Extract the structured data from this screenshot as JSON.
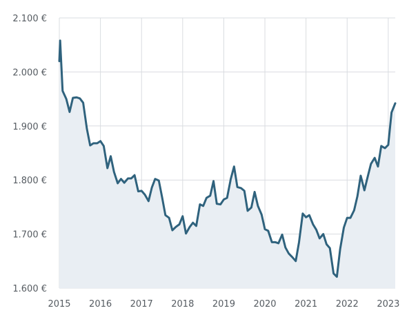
{
  "chart_data": {
    "type": "area",
    "title": "",
    "xlabel": "",
    "ylabel": "",
    "colors": {
      "line": "#2f627d",
      "fill": "#e9eef3",
      "grid": "#d9dce0",
      "text": "#555b61"
    },
    "grid": true,
    "ylim": [
      1600,
      2100
    ],
    "xlim": [
      2015.0,
      2023.17
    ],
    "y_ticks": [
      {
        "value": 2100,
        "label": "2.100 €"
      },
      {
        "value": 2000,
        "label": "2.000 €"
      },
      {
        "value": 1900,
        "label": "1.900 €"
      },
      {
        "value": 1800,
        "label": "1.800 €"
      },
      {
        "value": 1700,
        "label": "1.700 €"
      },
      {
        "value": 1600,
        "label": "1.600 €"
      }
    ],
    "x_ticks": [
      {
        "value": 2015,
        "label": "2015"
      },
      {
        "value": 2016,
        "label": "2016"
      },
      {
        "value": 2017,
        "label": "2017"
      },
      {
        "value": 2018,
        "label": "2018"
      },
      {
        "value": 2019,
        "label": "2019"
      },
      {
        "value": 2020,
        "label": "2020"
      },
      {
        "value": 2021,
        "label": "2021"
      },
      {
        "value": 2022,
        "label": "2022"
      },
      {
        "value": 2023,
        "label": "2023"
      }
    ],
    "series": [
      {
        "values": [
          [
            2015.0,
            2020
          ],
          [
            2015.02,
            2058
          ],
          [
            2015.08,
            1965
          ],
          [
            2015.17,
            1950
          ],
          [
            2015.25,
            1926
          ],
          [
            2015.33,
            1952
          ],
          [
            2015.42,
            1953
          ],
          [
            2015.5,
            1951
          ],
          [
            2015.58,
            1943
          ],
          [
            2015.67,
            1895
          ],
          [
            2015.75,
            1864
          ],
          [
            2015.83,
            1868
          ],
          [
            2015.92,
            1868
          ],
          [
            2016.0,
            1872
          ],
          [
            2016.08,
            1863
          ],
          [
            2016.17,
            1822
          ],
          [
            2016.25,
            1844
          ],
          [
            2016.33,
            1815
          ],
          [
            2016.42,
            1794
          ],
          [
            2016.5,
            1802
          ],
          [
            2016.58,
            1795
          ],
          [
            2016.67,
            1803
          ],
          [
            2016.75,
            1803
          ],
          [
            2016.83,
            1809
          ],
          [
            2016.92,
            1779
          ],
          [
            2017.0,
            1780
          ],
          [
            2017.08,
            1773
          ],
          [
            2017.17,
            1761
          ],
          [
            2017.25,
            1786
          ],
          [
            2017.33,
            1802
          ],
          [
            2017.42,
            1799
          ],
          [
            2017.5,
            1768
          ],
          [
            2017.58,
            1735
          ],
          [
            2017.67,
            1730
          ],
          [
            2017.75,
            1707
          ],
          [
            2017.83,
            1713
          ],
          [
            2017.92,
            1718
          ],
          [
            2018.0,
            1733
          ],
          [
            2018.08,
            1701
          ],
          [
            2018.17,
            1713
          ],
          [
            2018.25,
            1721
          ],
          [
            2018.33,
            1715
          ],
          [
            2018.42,
            1755
          ],
          [
            2018.5,
            1752
          ],
          [
            2018.58,
            1767
          ],
          [
            2018.67,
            1771
          ],
          [
            2018.75,
            1798
          ],
          [
            2018.83,
            1756
          ],
          [
            2018.92,
            1755
          ],
          [
            2019.0,
            1764
          ],
          [
            2019.08,
            1767
          ],
          [
            2019.17,
            1802
          ],
          [
            2019.25,
            1825
          ],
          [
            2019.33,
            1787
          ],
          [
            2019.42,
            1785
          ],
          [
            2019.5,
            1780
          ],
          [
            2019.58,
            1743
          ],
          [
            2019.67,
            1749
          ],
          [
            2019.75,
            1778
          ],
          [
            2019.83,
            1752
          ],
          [
            2019.92,
            1736
          ],
          [
            2020.0,
            1709
          ],
          [
            2020.08,
            1706
          ],
          [
            2020.17,
            1685
          ],
          [
            2020.25,
            1685
          ],
          [
            2020.33,
            1683
          ],
          [
            2020.42,
            1699
          ],
          [
            2020.5,
            1675
          ],
          [
            2020.58,
            1664
          ],
          [
            2020.67,
            1657
          ],
          [
            2020.75,
            1650
          ],
          [
            2020.83,
            1685
          ],
          [
            2020.92,
            1738
          ],
          [
            2021.0,
            1731
          ],
          [
            2021.08,
            1735
          ],
          [
            2021.17,
            1718
          ],
          [
            2021.25,
            1708
          ],
          [
            2021.33,
            1692
          ],
          [
            2021.42,
            1700
          ],
          [
            2021.5,
            1681
          ],
          [
            2021.58,
            1674
          ],
          [
            2021.67,
            1627
          ],
          [
            2021.75,
            1621
          ],
          [
            2021.83,
            1672
          ],
          [
            2021.92,
            1712
          ],
          [
            2022.0,
            1730
          ],
          [
            2022.08,
            1730
          ],
          [
            2022.17,
            1744
          ],
          [
            2022.25,
            1770
          ],
          [
            2022.33,
            1808
          ],
          [
            2022.42,
            1781
          ],
          [
            2022.5,
            1806
          ],
          [
            2022.58,
            1830
          ],
          [
            2022.67,
            1841
          ],
          [
            2022.75,
            1825
          ],
          [
            2022.83,
            1863
          ],
          [
            2022.92,
            1859
          ],
          [
            2023.0,
            1865
          ],
          [
            2023.08,
            1925
          ],
          [
            2023.17,
            1942
          ]
        ]
      }
    ]
  }
}
